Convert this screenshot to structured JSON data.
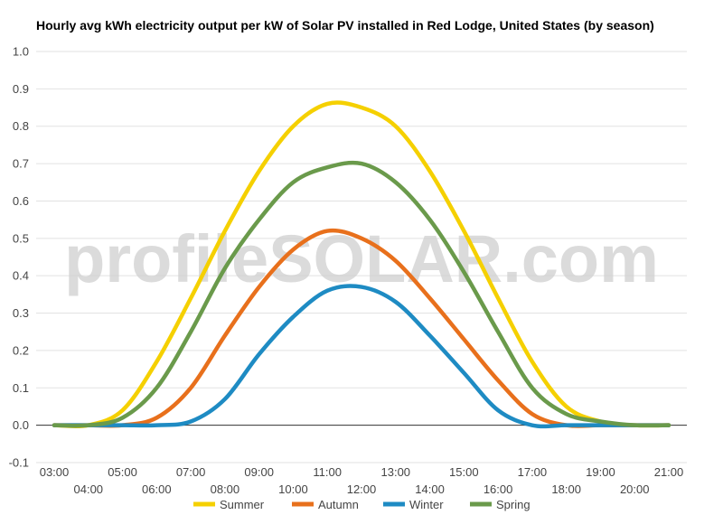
{
  "chart_data": {
    "type": "line",
    "title": "Hourly avg kWh electricity output per kW of Solar PV installed in Red Lodge, United States (by season)",
    "watermark": "profileSOLAR.com",
    "xlabel": "",
    "ylabel": "",
    "ylim": [
      -0.1,
      1.0
    ],
    "yticks": [
      "-0.1",
      "0.0",
      "0.1",
      "0.2",
      "0.3",
      "0.4",
      "0.5",
      "0.6",
      "0.7",
      "0.8",
      "0.9",
      "1.0"
    ],
    "x": [
      "03:00",
      "04:00",
      "05:00",
      "06:00",
      "07:00",
      "08:00",
      "09:00",
      "10:00",
      "11:00",
      "12:00",
      "13:00",
      "14:00",
      "15:00",
      "16:00",
      "17:00",
      "18:00",
      "19:00",
      "20:00",
      "21:00"
    ],
    "grid": true,
    "legend_position": "bottom",
    "series": [
      {
        "name": "Summer",
        "color": "#f5d000",
        "values": [
          0.0,
          0.0,
          0.04,
          0.17,
          0.34,
          0.52,
          0.68,
          0.8,
          0.86,
          0.85,
          0.8,
          0.68,
          0.52,
          0.34,
          0.17,
          0.05,
          0.01,
          0.0,
          0.0
        ]
      },
      {
        "name": "Autumn",
        "color": "#e8701c",
        "values": [
          0.0,
          0.0,
          0.0,
          0.02,
          0.1,
          0.24,
          0.37,
          0.47,
          0.52,
          0.5,
          0.44,
          0.34,
          0.23,
          0.12,
          0.03,
          0.0,
          0.0,
          0.0,
          0.0
        ]
      },
      {
        "name": "Winter",
        "color": "#1e8bc3",
        "values": [
          0.0,
          0.0,
          0.0,
          0.0,
          0.01,
          0.07,
          0.19,
          0.29,
          0.36,
          0.37,
          0.33,
          0.24,
          0.14,
          0.04,
          0.0,
          0.0,
          0.0,
          0.0,
          0.0
        ]
      },
      {
        "name": "Spring",
        "color": "#6a9a4b",
        "values": [
          0.0,
          0.0,
          0.02,
          0.1,
          0.25,
          0.42,
          0.55,
          0.65,
          0.69,
          0.7,
          0.65,
          0.55,
          0.41,
          0.25,
          0.1,
          0.03,
          0.01,
          0.0,
          0.0
        ]
      }
    ]
  }
}
